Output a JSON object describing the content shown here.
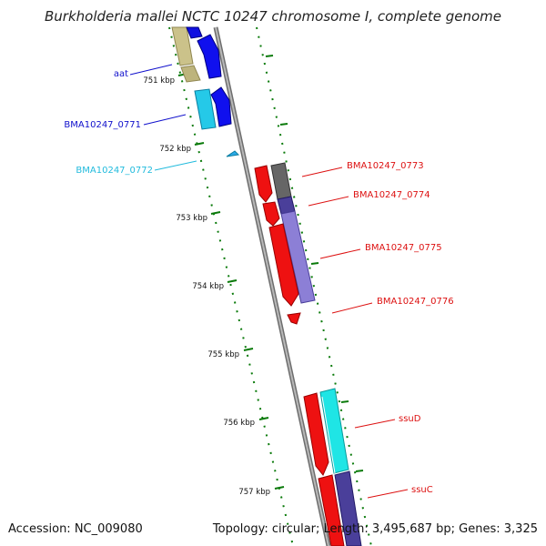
{
  "title": "Burkholderia mallei NCTC 10247 chromosome I, complete genome",
  "accession": "Accession: NC_009080",
  "summary": "Topology: circular; Length: 3,495,687 bp; Genes: 3,325",
  "colors": {
    "background": "#ffffff",
    "backbone": "#8c8c8c",
    "tick": "#0a7a0a",
    "forward_label": "#1010cc",
    "reverse_label": "#dd1111",
    "light_blue_label": "#22bbdd"
  },
  "ticks": [
    {
      "label": "751 kbp"
    },
    {
      "label": "752 kbp"
    },
    {
      "label": "753 kbp"
    },
    {
      "label": "754 kbp"
    },
    {
      "label": "755 kbp"
    },
    {
      "label": "756 kbp"
    },
    {
      "label": "757 kbp"
    }
  ],
  "gene_labels": [
    {
      "text": "aat",
      "color": "#1010cc"
    },
    {
      "text": "BMA10247_0771",
      "color": "#1010cc"
    },
    {
      "text": "BMA10247_0772",
      "color": "#22bbdd"
    },
    {
      "text": "BMA10247_0773",
      "color": "#dd1111"
    },
    {
      "text": "BMA10247_0774",
      "color": "#dd1111"
    },
    {
      "text": "BMA10247_0775",
      "color": "#dd1111"
    },
    {
      "text": "BMA10247_0776",
      "color": "#dd1111"
    },
    {
      "text": "ssuD",
      "color": "#dd1111"
    },
    {
      "text": "ssuC",
      "color": "#dd1111"
    }
  ]
}
